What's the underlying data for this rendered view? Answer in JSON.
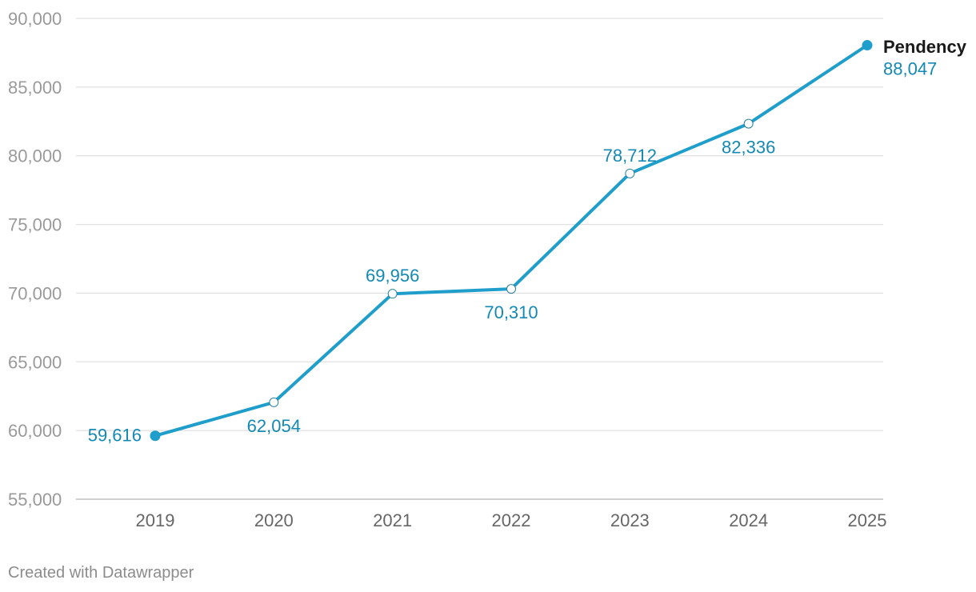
{
  "chart_data": {
    "type": "line",
    "categories": [
      "2019",
      "2020",
      "2021",
      "2022",
      "2023",
      "2024",
      "2025"
    ],
    "series": [
      {
        "name": "Pendency",
        "values": [
          59616,
          62054,
          69956,
          70310,
          78712,
          82336,
          88047
        ]
      }
    ],
    "data_labels": [
      "59,616",
      "62,054",
      "69,956",
      "70,310",
      "78,712",
      "82,336",
      "88,047"
    ],
    "y_ticks": [
      55000,
      60000,
      65000,
      70000,
      75000,
      80000,
      85000,
      90000
    ],
    "y_tick_labels": [
      "55,000",
      "60,000",
      "65,000",
      "70,000",
      "75,000",
      "80,000",
      "85,000",
      "90,000"
    ],
    "ylim": [
      55000,
      90000
    ],
    "grid": true,
    "colors": {
      "line": "#1f9ecb",
      "label": "#1389b3",
      "grid": "#e1e1e1"
    }
  },
  "footer": {
    "credit": "Created with Datawrapper"
  }
}
